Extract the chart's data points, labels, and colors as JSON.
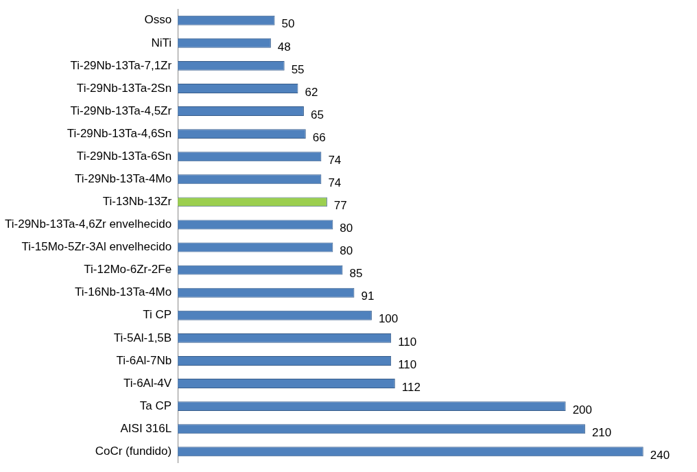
{
  "chart_data": {
    "type": "bar",
    "orientation": "horizontal",
    "data_labels": true,
    "legend": false,
    "categories": [
      "Osso",
      "NiTi",
      "Ti-29Nb-13Ta-7,1Zr",
      "Ti-29Nb-13Ta-2Sn",
      "Ti-29Nb-13Ta-4,5Zr",
      "Ti-29Nb-13Ta-4,6Sn",
      "Ti-29Nb-13Ta-6Sn",
      "Ti-29Nb-13Ta-4Mo",
      "Ti-13Nb-13Zr",
      "Ti-29Nb-13Ta-4,6Zr envelhecido",
      "Ti-15Mo-5Zr-3Al envelhecido",
      "Ti-12Mo-6Zr-2Fe",
      "Ti-16Nb-13Ta-4Mo",
      "Ti CP",
      "Ti-5Al-1,5B",
      "Ti-6Al-7Nb",
      "Ti-6Al-4V",
      "Ta CP",
      "AISI 316L",
      "CoCr (fundido)"
    ],
    "values": [
      50,
      48,
      55,
      62,
      65,
      66,
      74,
      74,
      77,
      80,
      80,
      85,
      91,
      100,
      110,
      110,
      112,
      200,
      210,
      240
    ],
    "colors": [
      "#4f81bd",
      "#4f81bd",
      "#4f81bd",
      "#4f81bd",
      "#4f81bd",
      "#4f81bd",
      "#4f81bd",
      "#4f81bd",
      "#9bcf4f",
      "#4f81bd",
      "#4f81bd",
      "#4f81bd",
      "#4f81bd",
      "#4f81bd",
      "#4f81bd",
      "#4f81bd",
      "#4f81bd",
      "#4f81bd",
      "#4f81bd",
      "#4f81bd"
    ]
  }
}
